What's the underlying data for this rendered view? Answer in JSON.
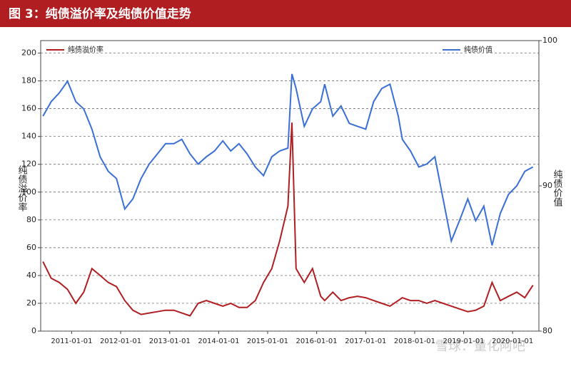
{
  "chart_data": {
    "type": "line",
    "title": "图 3：纯债溢价率及纯债价值走势",
    "ylabel": "纯债溢价率",
    "y2label": "纯债价值",
    "watermark": "雪球：量化阿吧",
    "x": [
      "2010-06-01",
      "2010-08-01",
      "2010-10-01",
      "2010-12-01",
      "2011-02-01",
      "2011-04-01",
      "2011-06-01",
      "2011-08-01",
      "2011-10-01",
      "2011-12-01",
      "2012-02-01",
      "2012-04-01",
      "2012-06-01",
      "2012-08-01",
      "2012-10-01",
      "2012-12-01",
      "2013-02-01",
      "2013-04-01",
      "2013-06-01",
      "2013-08-01",
      "2013-10-01",
      "2013-12-01",
      "2014-02-01",
      "2014-04-01",
      "2014-06-01",
      "2014-08-01",
      "2014-10-01",
      "2014-12-01",
      "2015-02-01",
      "2015-04-01",
      "2015-06-01",
      "2015-07-01",
      "2015-08-01",
      "2015-10-01",
      "2015-12-01",
      "2016-02-01",
      "2016-03-01",
      "2016-05-01",
      "2016-07-01",
      "2016-09-01",
      "2016-11-01",
      "2017-01-01",
      "2017-03-01",
      "2017-05-01",
      "2017-07-01",
      "2017-09-01",
      "2017-10-01",
      "2017-12-01",
      "2018-02-01",
      "2018-04-01",
      "2018-06-01",
      "2018-08-01",
      "2018-10-01",
      "2018-12-01",
      "2019-02-01",
      "2019-04-01",
      "2019-06-01",
      "2019-08-01",
      "2019-10-01",
      "2019-12-01",
      "2020-02-01",
      "2020-04-01",
      "2020-06-01"
    ],
    "series": [
      {
        "name": "纯债溢价率",
        "color": "#b01e22",
        "values": [
          50,
          38,
          35,
          30,
          20,
          28,
          45,
          40,
          35,
          32,
          22,
          15,
          12,
          13,
          14,
          15,
          15,
          13,
          11,
          20,
          22,
          20,
          18,
          20,
          17,
          17,
          22,
          35,
          45,
          65,
          90,
          150,
          45,
          35,
          45,
          25,
          22,
          28,
          22,
          24,
          25,
          24,
          22,
          20,
          18,
          22,
          24,
          22,
          22,
          20,
          22,
          20,
          18,
          16,
          14,
          15,
          18,
          35,
          22,
          25,
          28,
          24,
          33
        ]
      },
      {
        "name": "纯债价值",
        "color": "#3a6fd6",
        "axis": "y2",
        "values": [
          94.8,
          95.8,
          96.4,
          97.2,
          95.8,
          95.3,
          93.9,
          92.0,
          91.0,
          90.5,
          88.4,
          89.1,
          90.5,
          91.5,
          92.2,
          92.9,
          92.9,
          93.2,
          92.2,
          91.5,
          92.0,
          92.4,
          93.1,
          92.4,
          92.9,
          92.2,
          91.3,
          90.7,
          92.0,
          92.4,
          92.6,
          97.7,
          96.7,
          94.1,
          95.3,
          95.8,
          97.0,
          94.8,
          95.5,
          94.3,
          94.1,
          93.9,
          95.8,
          96.7,
          97.0,
          94.8,
          93.2,
          92.4,
          91.3,
          91.5,
          92.0,
          89.1,
          86.2,
          87.6,
          89.1,
          87.6,
          88.6,
          85.9,
          88.1,
          89.4,
          90.0,
          91.0,
          91.3
        ]
      }
    ],
    "xlim": [
      "2010-05-15",
      "2020-07-15"
    ],
    "xticks": [
      "2011-01-01",
      "2012-01-01",
      "2013-01-01",
      "2014-01-01",
      "2015-01-01",
      "2016-01-01",
      "2017-01-01",
      "2018-01-01",
      "2019-01-01",
      "2020-01-01"
    ],
    "ylim": [
      0,
      209
    ],
    "yticks": [
      0,
      20,
      40,
      60,
      80,
      100,
      120,
      140,
      160,
      180,
      200
    ],
    "y2lim": [
      80,
      100
    ],
    "y2ticks": [
      80,
      90,
      100
    ],
    "grid": true
  }
}
